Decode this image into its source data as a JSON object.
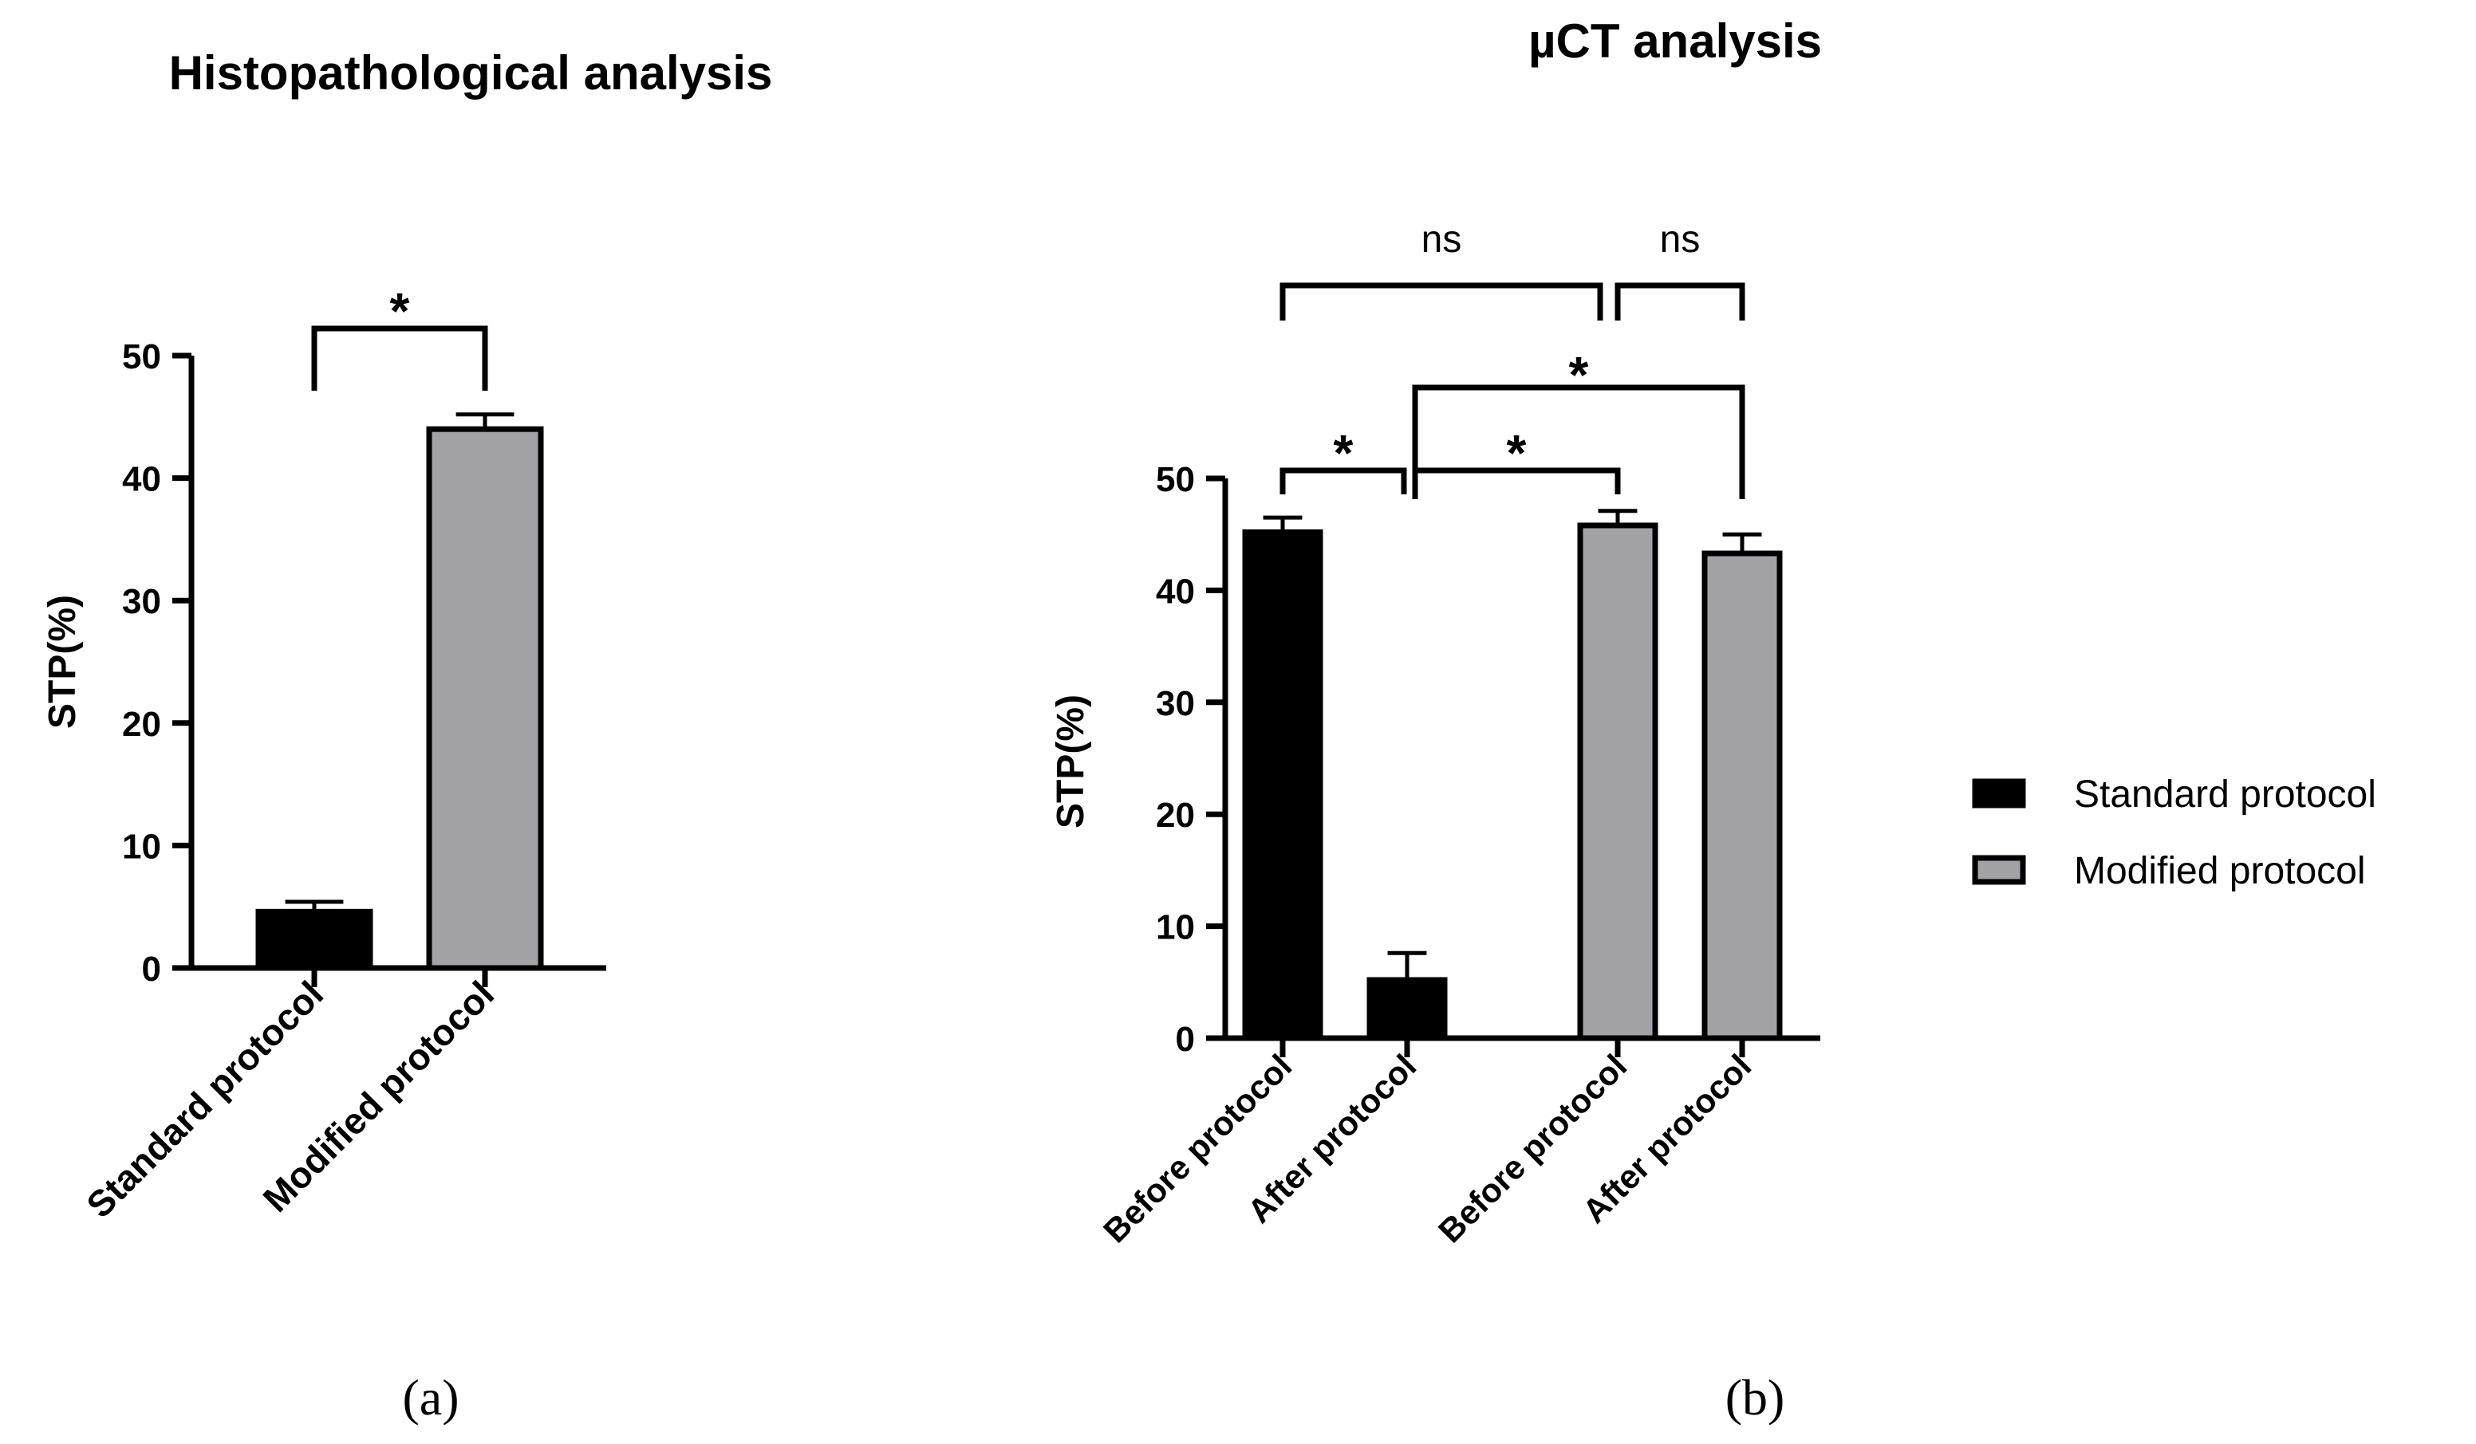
{
  "figure": {
    "panel_a_label": "(a)",
    "panel_b_label": "(b)"
  },
  "colors": {
    "standard": "#000000",
    "modified": "#a3a3a7",
    "ink": "#000000"
  },
  "chart_data": [
    {
      "type": "bar",
      "title": "Histopathological analysis",
      "xlabel": "",
      "ylabel": "STP(%)",
      "ylim": [
        0,
        50
      ],
      "yticks": [
        0,
        10,
        20,
        30,
        40,
        50
      ],
      "grid": false,
      "categories": [
        "Standard protocol",
        "Modified protocol"
      ],
      "values": [
        4.6,
        44.0
      ],
      "errors": [
        0.8,
        1.2
      ],
      "groups": [
        "standard",
        "modified"
      ],
      "significance": [
        {
          "from": 0,
          "to": 1,
          "label": "*"
        }
      ]
    },
    {
      "type": "bar",
      "title": "µCT analysis",
      "xlabel": "",
      "ylabel": "STP(%)",
      "ylim": [
        0,
        50
      ],
      "yticks": [
        0,
        10,
        20,
        30,
        40,
        50
      ],
      "grid": false,
      "categories": [
        "Before protocol",
        "After protocol",
        "Before protocol",
        "After protocol"
      ],
      "values": [
        45.2,
        5.2,
        45.8,
        43.3
      ],
      "errors": [
        1.3,
        2.4,
        1.3,
        1.7
      ],
      "groups": [
        "standard",
        "standard",
        "modified",
        "modified"
      ],
      "legend": {
        "position": "right",
        "entries": [
          {
            "label": "Standard protocol",
            "group": "standard"
          },
          {
            "label": "Modified protocol",
            "group": "modified"
          }
        ]
      },
      "significance": [
        {
          "from": 0,
          "to": 1,
          "label": "*"
        },
        {
          "from": 1,
          "to": 2,
          "label": "*"
        },
        {
          "from": 1,
          "to": 3,
          "label": "*"
        },
        {
          "from": 0,
          "to": 2,
          "label": "ns"
        },
        {
          "from": 2,
          "to": 3,
          "label": "ns"
        }
      ]
    }
  ]
}
